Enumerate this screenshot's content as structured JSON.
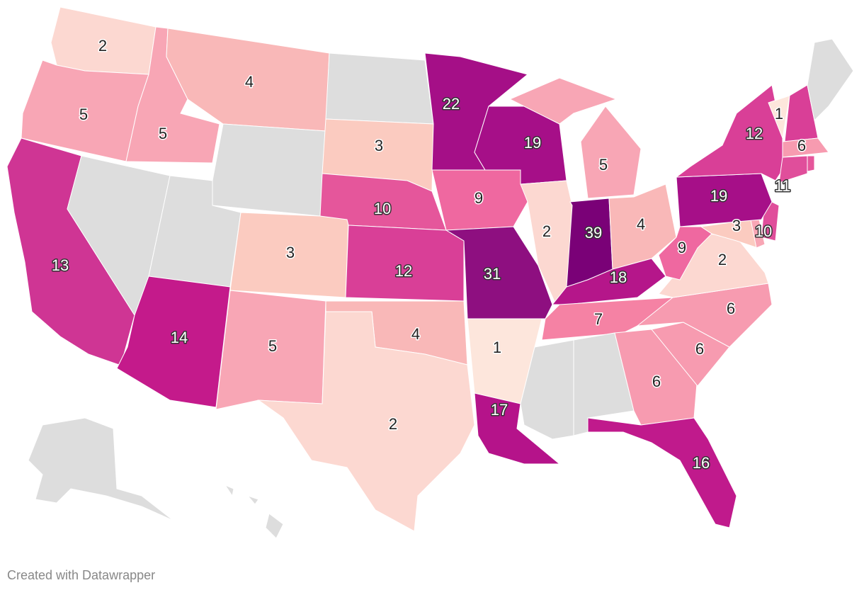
{
  "chart_data": {
    "type": "choropleth",
    "values": [
      2,
      5,
      13,
      5,
      4,
      null,
      null,
      null,
      14,
      3,
      5,
      null,
      3,
      10,
      12,
      4,
      2,
      22,
      9,
      31,
      1,
      17,
      19,
      2,
      39,
      5,
      4,
      18,
      7,
      null,
      null,
      6,
      16,
      6,
      6,
      2,
      9,
      3,
      11,
      10,
      19,
      12,
      1,
      null,
      null,
      6,
      null,
      null,
      null,
      null
    ],
    "colors": [
      "#fcd8d1",
      "#f8a6b5",
      "#cf3594",
      "#f8a6b5",
      "#f9b8b8",
      "#dddddd",
      "#dddddd",
      "#dddddd",
      "#c41a8b",
      "#fbcbc0",
      "#f8a6b5",
      "#dddddd",
      "#fbcbc0",
      "#e5569b",
      "#d93f97",
      "#f9b8b8",
      "#fcd8d1",
      "#a50f87",
      "#ef68a0",
      "#8e0f80",
      "#fde6dc",
      "#b5138a",
      "#a60f88",
      "#fcd8d1",
      "#7a0177",
      "#f8a6b5",
      "#f9b8b8",
      "#b5168a",
      "#f582a4",
      "#dddddd",
      "#dddddd",
      "#f79bb0",
      "#c01a8c",
      "#f79bb0",
      "#f79bb0",
      "#fcd8d1",
      "#ef68a0",
      "#fbcbc0",
      "#e04e9b",
      "#f8a6b5",
      "#a60f88",
      "#d93f97",
      "#fde6dc",
      "#d93f97",
      "#dddddd",
      "#f79bb0",
      "#e04e9b",
      "#e5569b",
      "#dddddd",
      "#dddddd"
    ]
  },
  "footer": "Created with Datawrapper"
}
